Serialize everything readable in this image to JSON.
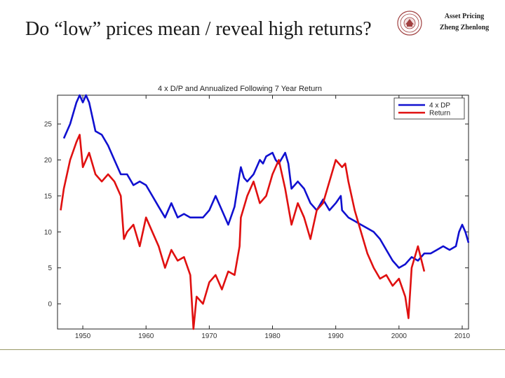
{
  "slide": {
    "title": "Do “low” prices mean / reveal high returns?",
    "course": "Asset Pricing",
    "author": "Zheng Zhenlong"
  },
  "colors": {
    "dp": "#1010d0",
    "ret": "#e01010",
    "footer": "#999966"
  },
  "chart_data": {
    "type": "line",
    "title": "4 x D/P and Annualized Following 7 Year Return",
    "xlim": [
      1946,
      2011
    ],
    "ylim": [
      -3.5,
      29
    ],
    "xticks": [
      1950,
      1960,
      1970,
      1980,
      1990,
      2000,
      2010
    ],
    "yticks": [
      0,
      5,
      10,
      15,
      20,
      25
    ],
    "xtick_labels": [
      "1950",
      "1960",
      "1970",
      "1980",
      "1990",
      "2000",
      "2010"
    ],
    "ytick_labels": [
      "0",
      "5",
      "10",
      "15",
      "20",
      "25"
    ],
    "grid": false,
    "legend": "top-right",
    "series": [
      {
        "name": "4 x DP",
        "color": "#1010d0",
        "x": [
          1947,
          1948,
          1949,
          1949.5,
          1950,
          1950.5,
          1951,
          1951.5,
          1952,
          1953,
          1954,
          1955,
          1956,
          1957,
          1958,
          1959,
          1960,
          1961,
          1962,
          1963,
          1964,
          1965,
          1966,
          1967,
          1968,
          1969,
          1970,
          1971,
          1972,
          1973,
          1974,
          1974.8,
          1975,
          1975.5,
          1976,
          1977,
          1978,
          1978.5,
          1979,
          1980,
          1980.5,
          1981,
          1982,
          1982.5,
          1983,
          1984,
          1985,
          1986,
          1987,
          1988,
          1989,
          1990,
          1990.8,
          1991,
          1992,
          1993,
          1994,
          1995,
          1996,
          1997,
          1998,
          1999,
          2000,
          2001,
          2002,
          2003,
          2004,
          2005,
          2006,
          2007,
          2008,
          2009,
          2009.5,
          2010,
          2010.5,
          2011
        ],
        "y": [
          23,
          25,
          28,
          29,
          28,
          29,
          28,
          26,
          24,
          23.5,
          22,
          20,
          18,
          18,
          16.5,
          17,
          16.5,
          15,
          13.5,
          12,
          14,
          12,
          12.5,
          12,
          12,
          12,
          13,
          15,
          13,
          11,
          13.5,
          18,
          19,
          17.5,
          17,
          18,
          20,
          19.5,
          20.5,
          21,
          20,
          19.5,
          21,
          19.5,
          16,
          17,
          16,
          14,
          13,
          14.5,
          13,
          14,
          15,
          13,
          12,
          11.5,
          11,
          10.5,
          10,
          9,
          7.5,
          6,
          5,
          5.5,
          6.5,
          6,
          7,
          7,
          7.5,
          8,
          7.5,
          8,
          10,
          11,
          10,
          8.5
        ]
      },
      {
        "name": "Return",
        "color": "#e01010",
        "x": [
          1946.5,
          1947,
          1948,
          1949,
          1949.5,
          1950,
          1951,
          1952,
          1953,
          1954,
          1955,
          1956,
          1956.5,
          1957,
          1958,
          1959,
          1960,
          1961,
          1962,
          1963,
          1964,
          1965,
          1966,
          1967,
          1967.5,
          1968,
          1969,
          1970,
          1971,
          1972,
          1973,
          1974,
          1974.8,
          1975,
          1976,
          1977,
          1978,
          1979,
          1980,
          1981,
          1982,
          1983,
          1984,
          1985,
          1986,
          1987,
          1988,
          1989,
          1990,
          1991,
          1991.5,
          1992,
          1993,
          1994,
          1995,
          1996,
          1997,
          1998,
          1999,
          2000,
          2001,
          2001.5,
          2002,
          2003,
          2004
        ],
        "y": [
          13,
          16,
          20,
          22.5,
          23.5,
          19,
          21,
          18,
          17,
          18,
          17,
          15,
          9,
          10,
          11,
          8,
          12,
          10,
          8,
          5,
          7.5,
          6,
          6.5,
          4,
          -3.5,
          1,
          0,
          3,
          4,
          2,
          4.5,
          4,
          8,
          12,
          15,
          17,
          14,
          15,
          18,
          20,
          16,
          11,
          14,
          12,
          9,
          13,
          14,
          17,
          20,
          19,
          19.5,
          17,
          13,
          10,
          7,
          5,
          3.5,
          4,
          2.5,
          3.5,
          1,
          -2,
          5,
          8,
          4.5
        ]
      }
    ]
  }
}
